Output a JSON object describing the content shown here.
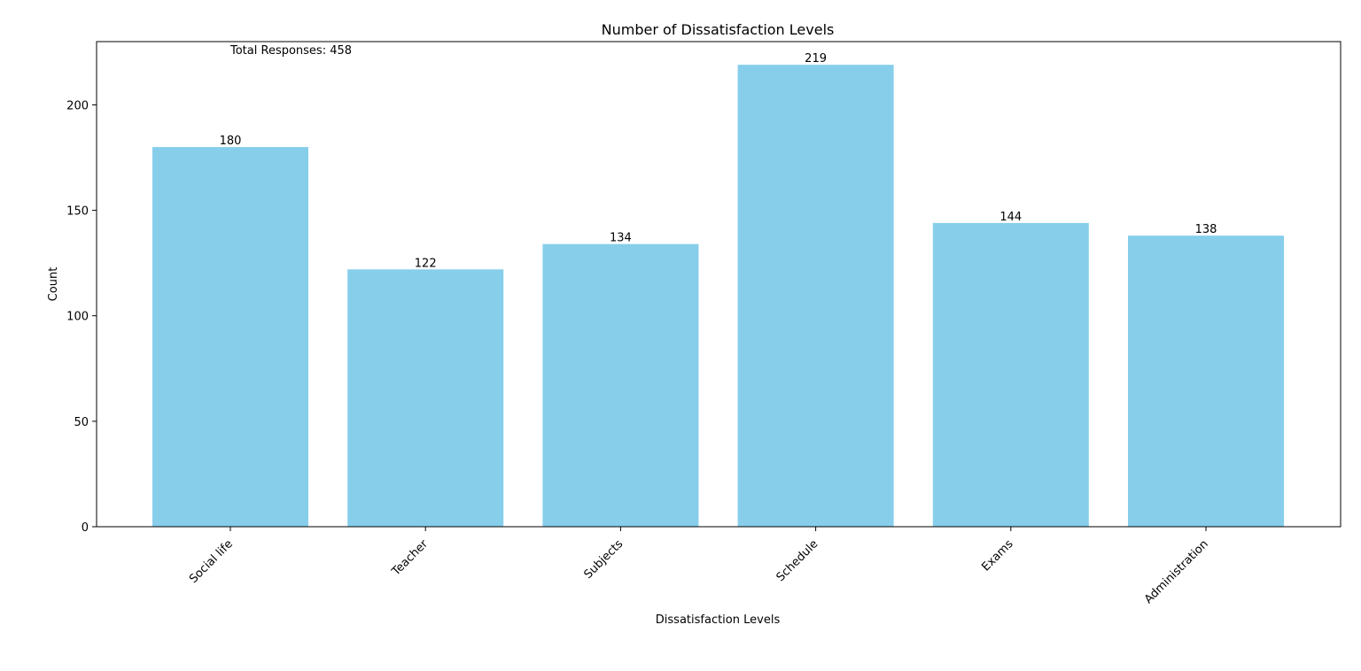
{
  "chart_data": {
    "type": "bar",
    "title": "Number of Dissatisfaction Levels",
    "xlabel": "Dissatisfaction Levels",
    "ylabel": "Count",
    "categories": [
      "Social life",
      "Teacher",
      "Subjects",
      "Schedule",
      "Exams",
      "Administration"
    ],
    "values": [
      180,
      122,
      134,
      219,
      144,
      138
    ],
    "ylim": [
      0,
      230
    ],
    "yticks": [
      0,
      50,
      100,
      150,
      200
    ],
    "annotation": "Total Responses: 458",
    "bar_color": "#87CEEB",
    "grid": false,
    "data_labels": true,
    "xtick_rotation": "45 degrees"
  }
}
